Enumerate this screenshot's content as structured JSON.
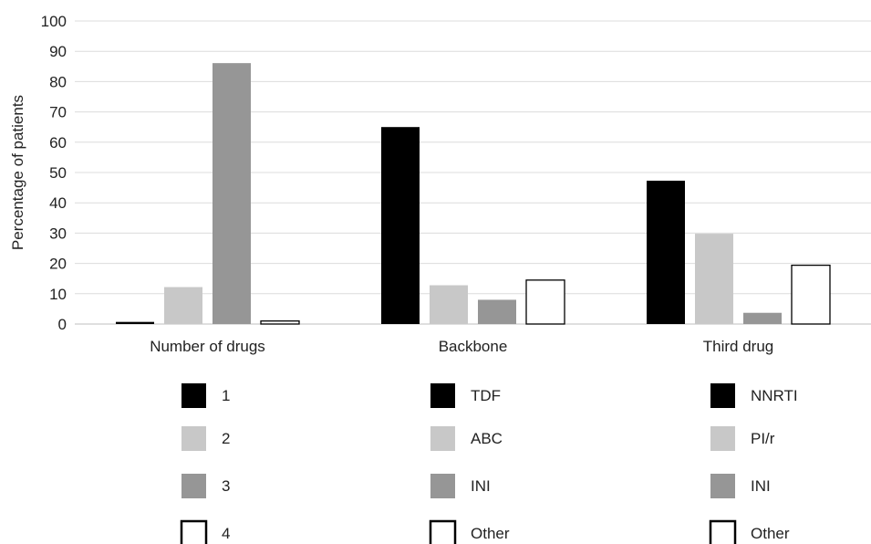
{
  "chart_data": {
    "type": "bar",
    "ylabel": "Percentage of patients",
    "xlabel": "",
    "ylim": [
      0,
      100
    ],
    "yticks": [
      0,
      10,
      20,
      30,
      40,
      50,
      60,
      70,
      80,
      90,
      100
    ],
    "grid": true,
    "legend_position": "bottom",
    "groups": [
      {
        "category": "Number of drugs",
        "bars": [
          {
            "label": "1",
            "value": 0.7,
            "color": "#000000"
          },
          {
            "label": "2",
            "value": 12.2,
            "color": "#c8c8c8"
          },
          {
            "label": "3",
            "value": 86.1,
            "color": "#969696"
          },
          {
            "label": "4",
            "value": 1.0,
            "color": "#ffffff"
          }
        ]
      },
      {
        "category": "Backbone",
        "bars": [
          {
            "label": "TDF",
            "value": 65.0,
            "color": "#000000"
          },
          {
            "label": "ABC",
            "value": 12.8,
            "color": "#c8c8c8"
          },
          {
            "label": "INI",
            "value": 8.0,
            "color": "#969696"
          },
          {
            "label": "Other",
            "value": 14.5,
            "color": "#ffffff"
          }
        ]
      },
      {
        "category": "Third drug",
        "bars": [
          {
            "label": "NNRTI",
            "value": 47.3,
            "color": "#000000"
          },
          {
            "label": "PI/r",
            "value": 29.8,
            "color": "#c8c8c8"
          },
          {
            "label": "INI",
            "value": 3.7,
            "color": "#969696"
          },
          {
            "label": "Other",
            "value": 19.4,
            "color": "#ffffff"
          }
        ]
      }
    ]
  }
}
